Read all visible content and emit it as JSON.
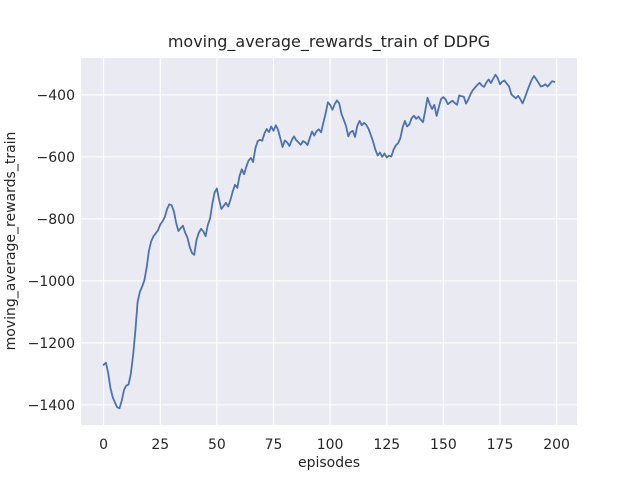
{
  "figure": {
    "background": "#ffffff"
  },
  "chart_data": {
    "type": "line",
    "title": "moving_average_rewards_train of DDPG",
    "xlabel": "episodes",
    "ylabel": "moving_average_rewards_train",
    "x_ticks": [
      0,
      25,
      50,
      75,
      100,
      125,
      150,
      175,
      200
    ],
    "y_ticks": [
      -400,
      -600,
      -800,
      -1000,
      -1200,
      -1400
    ],
    "xlim": [
      -10,
      209
    ],
    "ylim": [
      -1465,
      -281
    ],
    "grid": true,
    "legend": "none",
    "plot_background": "#eaeaf2",
    "grid_color": "#ffffff",
    "text_color": "#262626",
    "series": [
      {
        "name": "DDPG",
        "color": "#4c72b0",
        "line_width": 1.8,
        "x_start": 0,
        "x_step": 1,
        "y": [
          -1271,
          -1264,
          -1297,
          -1345,
          -1375,
          -1393,
          -1408,
          -1411,
          -1386,
          -1352,
          -1338,
          -1334,
          -1300,
          -1240,
          -1160,
          -1068,
          -1035,
          -1018,
          -998,
          -956,
          -903,
          -872,
          -856,
          -847,
          -837,
          -818,
          -808,
          -794,
          -768,
          -753,
          -756,
          -776,
          -812,
          -839,
          -830,
          -822,
          -845,
          -860,
          -890,
          -910,
          -916,
          -868,
          -845,
          -832,
          -840,
          -856,
          -820,
          -798,
          -750,
          -715,
          -702,
          -740,
          -768,
          -758,
          -748,
          -760,
          -738,
          -712,
          -690,
          -700,
          -662,
          -640,
          -656,
          -632,
          -612,
          -603,
          -617,
          -572,
          -549,
          -545,
          -548,
          -524,
          -510,
          -520,
          -502,
          -516,
          -498,
          -512,
          -540,
          -568,
          -547,
          -553,
          -565,
          -547,
          -534,
          -546,
          -553,
          -561,
          -549,
          -553,
          -562,
          -540,
          -518,
          -531,
          -517,
          -511,
          -521,
          -490,
          -460,
          -424,
          -432,
          -448,
          -430,
          -418,
          -427,
          -462,
          -480,
          -500,
          -534,
          -520,
          -516,
          -536,
          -500,
          -484,
          -498,
          -490,
          -497,
          -510,
          -530,
          -552,
          -577,
          -596,
          -586,
          -600,
          -589,
          -602,
          -596,
          -599,
          -577,
          -563,
          -556,
          -540,
          -505,
          -484,
          -502,
          -495,
          -475,
          -467,
          -477,
          -470,
          -480,
          -488,
          -450,
          -409,
          -430,
          -446,
          -432,
          -468,
          -440,
          -413,
          -407,
          -415,
          -430,
          -424,
          -419,
          -426,
          -432,
          -402,
          -404,
          -406,
          -428,
          -415,
          -397,
          -385,
          -376,
          -368,
          -361,
          -370,
          -374,
          -360,
          -350,
          -362,
          -348,
          -335,
          -346,
          -366,
          -357,
          -354,
          -364,
          -373,
          -398,
          -405,
          -411,
          -403,
          -414,
          -427,
          -409,
          -388,
          -369,
          -351,
          -339,
          -349,
          -361,
          -373,
          -371,
          -366,
          -373,
          -365,
          -356,
          -358
        ]
      }
    ]
  }
}
